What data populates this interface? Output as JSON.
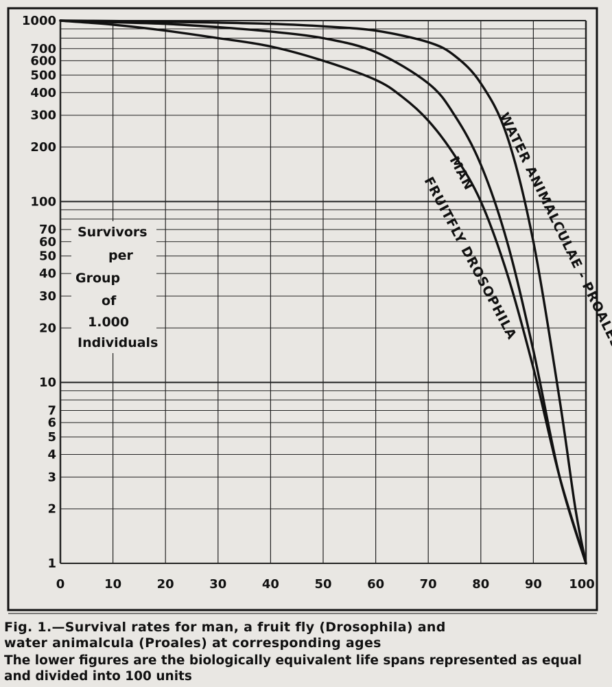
{
  "chart_data": {
    "type": "line",
    "title": "",
    "xlabel": "",
    "ylabel_lines": [
      "Survivors",
      "per",
      "Group",
      "of",
      "1.000",
      "Individuals"
    ],
    "xlim": [
      0,
      100
    ],
    "ylim": [
      1,
      1000
    ],
    "y_scale": "log",
    "grid": true,
    "x_ticks": [
      0,
      10,
      20,
      30,
      40,
      50,
      60,
      70,
      80,
      90,
      100
    ],
    "y_ticks": [
      1,
      2,
      3,
      4,
      5,
      6,
      7,
      10,
      20,
      30,
      40,
      50,
      60,
      70,
      100,
      200,
      300,
      400,
      500,
      600,
      700,
      1000
    ],
    "series": [
      {
        "name": "FRUITFLY DROSOPHILA",
        "x": [
          0,
          10,
          20,
          30,
          40,
          50,
          60,
          65,
          70,
          75,
          80,
          85,
          90,
          95,
          100
        ],
        "y": [
          1000,
          950,
          880,
          800,
          720,
          600,
          470,
          380,
          280,
          180,
          100,
          40,
          12,
          3,
          1
        ]
      },
      {
        "name": "MAN",
        "x": [
          0,
          10,
          20,
          30,
          40,
          50,
          60,
          70,
          75,
          80,
          85,
          90,
          95,
          100
        ],
        "y": [
          1000,
          980,
          960,
          920,
          870,
          800,
          670,
          450,
          300,
          160,
          60,
          15,
          3,
          1
        ]
      },
      {
        "name": "WATER ANIMALCULAE - PROALES",
        "x": [
          0,
          10,
          20,
          30,
          40,
          50,
          60,
          70,
          75,
          80,
          85,
          90,
          95,
          98,
          100
        ],
        "y": [
          1000,
          995,
          985,
          975,
          960,
          930,
          880,
          760,
          640,
          450,
          230,
          60,
          8,
          2,
          1
        ]
      }
    ]
  },
  "caption": {
    "line1": "Fig. 1.—Survival rates for man, a fruit fly (Drosophila) and",
    "line2": "water animalcula (Proales) at corresponding ages",
    "line3": "The lower figures are the biologically equivalent life spans represented as equal and divided into 100 units"
  }
}
